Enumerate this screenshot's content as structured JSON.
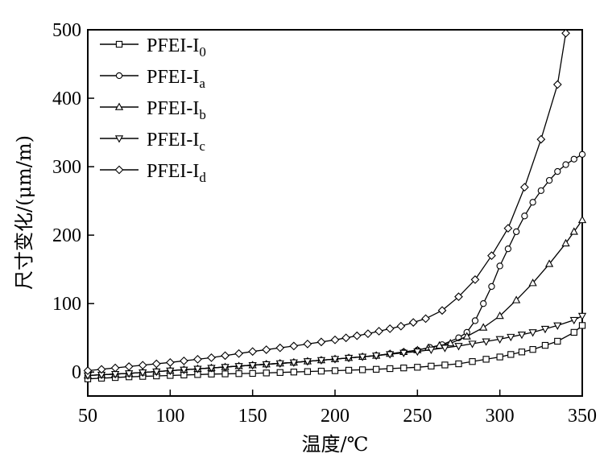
{
  "chart_data": {
    "type": "line",
    "xlabel": "温度/℃",
    "ylabel": "尺寸变化/(μm/m)",
    "xlim": [
      50,
      350
    ],
    "ylim": [
      -35,
      500
    ],
    "xticks": [
      50,
      100,
      150,
      200,
      250,
      300,
      350
    ],
    "yticks": [
      0,
      100,
      200,
      300,
      400,
      500
    ],
    "x_tick_labels": [
      "50",
      "100",
      "150",
      "200",
      "250",
      "300",
      "350"
    ],
    "y_tick_labels": [
      "0",
      "100",
      "200",
      "300",
      "400",
      "500"
    ],
    "grid": false,
    "legend_position": "top-left",
    "series": [
      {
        "name": "PFEI-I",
        "subscript": "0",
        "marker": "square",
        "points": [
          [
            50,
            -10
          ],
          [
            75,
            -7
          ],
          [
            100,
            -5
          ],
          [
            125,
            -3
          ],
          [
            150,
            -2
          ],
          [
            175,
            0
          ],
          [
            200,
            2
          ],
          [
            225,
            4
          ],
          [
            250,
            7
          ],
          [
            275,
            12
          ],
          [
            300,
            22
          ],
          [
            320,
            33
          ],
          [
            335,
            45
          ],
          [
            345,
            58
          ],
          [
            350,
            68
          ]
        ]
      },
      {
        "name": "PFEI-I",
        "subscript": "a",
        "marker": "circle",
        "points": [
          [
            50,
            -5
          ],
          [
            75,
            -2
          ],
          [
            100,
            2
          ],
          [
            125,
            6
          ],
          [
            150,
            10
          ],
          [
            175,
            14
          ],
          [
            200,
            19
          ],
          [
            225,
            24
          ],
          [
            250,
            32
          ],
          [
            265,
            40
          ],
          [
            275,
            50
          ],
          [
            280,
            58
          ],
          [
            285,
            75
          ],
          [
            290,
            100
          ],
          [
            295,
            125
          ],
          [
            300,
            155
          ],
          [
            305,
            180
          ],
          [
            310,
            205
          ],
          [
            315,
            228
          ],
          [
            320,
            248
          ],
          [
            325,
            265
          ],
          [
            330,
            280
          ],
          [
            335,
            293
          ],
          [
            340,
            303
          ],
          [
            345,
            311
          ],
          [
            350,
            318
          ]
        ]
      },
      {
        "name": "PFEI-I",
        "subscript": "b",
        "marker": "triangle-up",
        "points": [
          [
            50,
            -5
          ],
          [
            75,
            -2
          ],
          [
            100,
            2
          ],
          [
            125,
            6
          ],
          [
            150,
            10
          ],
          [
            175,
            14
          ],
          [
            200,
            19
          ],
          [
            225,
            24
          ],
          [
            250,
            32
          ],
          [
            270,
            42
          ],
          [
            280,
            52
          ],
          [
            290,
            65
          ],
          [
            300,
            82
          ],
          [
            310,
            105
          ],
          [
            320,
            130
          ],
          [
            330,
            158
          ],
          [
            340,
            188
          ],
          [
            345,
            205
          ],
          [
            350,
            222
          ]
        ]
      },
      {
        "name": "PFEI-I",
        "subscript": "c",
        "marker": "triangle-down",
        "points": [
          [
            50,
            -5
          ],
          [
            75,
            -2
          ],
          [
            100,
            2
          ],
          [
            125,
            6
          ],
          [
            150,
            10
          ],
          [
            175,
            14
          ],
          [
            200,
            19
          ],
          [
            225,
            24
          ],
          [
            250,
            30
          ],
          [
            275,
            38
          ],
          [
            300,
            48
          ],
          [
            320,
            58
          ],
          [
            335,
            68
          ],
          [
            345,
            76
          ],
          [
            350,
            82
          ]
        ]
      },
      {
        "name": "PFEI-I",
        "subscript": "d",
        "marker": "diamond",
        "points": [
          [
            50,
            2
          ],
          [
            75,
            8
          ],
          [
            100,
            14
          ],
          [
            125,
            21
          ],
          [
            150,
            30
          ],
          [
            175,
            38
          ],
          [
            200,
            47
          ],
          [
            220,
            56
          ],
          [
            240,
            67
          ],
          [
            255,
            78
          ],
          [
            265,
            90
          ],
          [
            275,
            110
          ],
          [
            285,
            135
          ],
          [
            295,
            170
          ],
          [
            305,
            210
          ],
          [
            315,
            270
          ],
          [
            325,
            340
          ],
          [
            335,
            420
          ],
          [
            340,
            495
          ]
        ]
      }
    ]
  }
}
